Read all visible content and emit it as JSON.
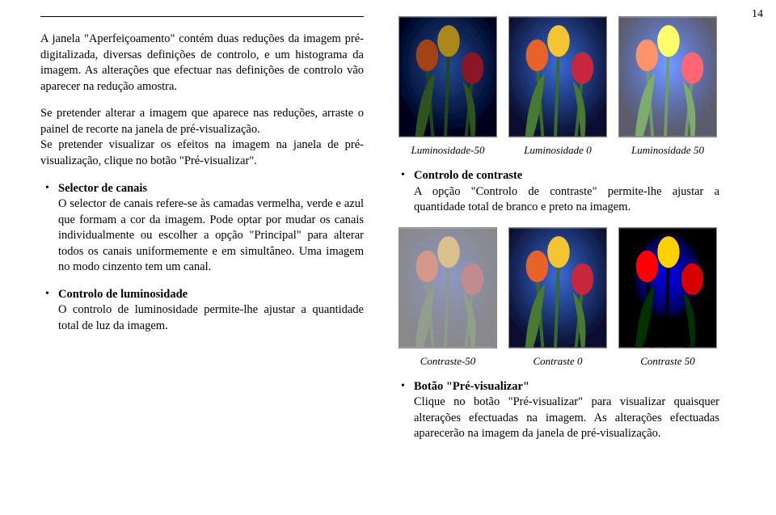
{
  "page_number": "14",
  "left": {
    "intro": "A janela \"Aperfeiçoamento\" contém duas reduções da imagem pré-digitalizada, diversas definições de controlo, e um histograma da imagem. As alterações que efectuar nas definições de controlo vão aparecer na redução amostra.",
    "intro2": "Se pretender alterar a imagem que aparece nas reduções, arraste o painel de recorte na janela de pré-visualização.",
    "intro3": "Se pretender visualizar os efeitos na imagem na janela de pré-visualização, clique no botão \"Pré-visualizar\".",
    "bullet1_title": "Selector de canais",
    "bullet1_body": "O selector de canais refere-se às camadas vermelha, verde e azul que formam a cor da imagem. Pode optar por mudar os canais individualmente ou escolher a opção \"Principal\" para alterar todos os canais uniformemente e em simultâneo. Uma imagem no modo cinzento tem um canal.",
    "bullet2_title": "Controlo de luminosidade",
    "bullet2_body": "O controlo de luminosidade permite-lhe ajustar a quantidade total de luz da imagem."
  },
  "right": {
    "row1_caps": [
      "Luminosidade-50",
      "Luminosidade 0",
      "Luminosidade 50"
    ],
    "bullet1_title": "Controlo de contraste",
    "bullet1_body": "A opção \"Controlo de contraste\" permite-lhe ajustar a quantidade total de branco e preto na imagem.",
    "row2_caps": [
      "Contraste-50",
      "Contraste 0",
      "Contraste 50"
    ],
    "bullet2_title": "Botão \"Pré-visualizar\"",
    "bullet2_body": "Clique no botão \"Pré-visualizar\" para visualizar quaisquer alterações efectuadas na imagem. As alterações efectuadas aparecerão na imagem da janela de pré-visualização."
  },
  "tulip_colors": {
    "bg_dark": "#0a1030",
    "bg_glow": "#3a6bd8",
    "yellow": "#f4c430",
    "red": "#c8283c",
    "orange": "#e8632c",
    "stem": "#3a6a2c",
    "leaf": "#4a7a30"
  }
}
